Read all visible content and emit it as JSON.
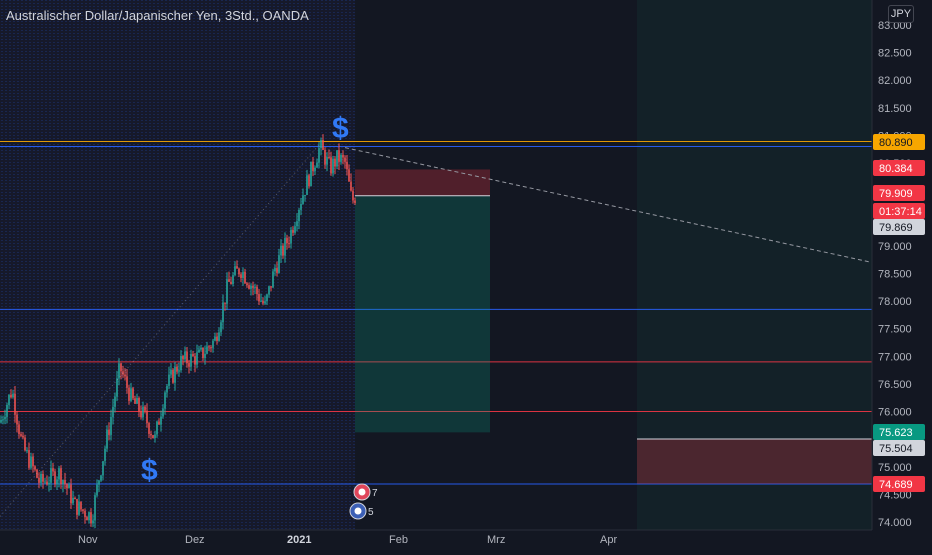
{
  "header": {
    "title": "Australischer Dollar/Japanischer Yen, 3Std., OANDA",
    "currency": "JPY"
  },
  "chart_data": {
    "type": "candlestick",
    "y_axis": {
      "ticks": [
        "74.000",
        "74.500",
        "75.000",
        "75.500",
        "76.000",
        "76.500",
        "77.000",
        "77.500",
        "78.000",
        "78.500",
        "79.000",
        "79.500",
        "80.000",
        "80.500",
        "81.000",
        "81.500",
        "82.000",
        "82.500",
        "83.000"
      ]
    },
    "x_axis": {
      "labels": [
        {
          "text": "Nov",
          "bold": false
        },
        {
          "text": "Dez",
          "bold": false
        },
        {
          "text": "2021",
          "bold": true
        },
        {
          "text": "Feb",
          "bold": false
        },
        {
          "text": "Mrz",
          "bold": false
        },
        {
          "text": "Apr",
          "bold": false
        }
      ]
    },
    "price_tags": [
      {
        "value": "80.890",
        "bg": "#f7a600",
        "fg": "#131722"
      },
      {
        "value": "80.384",
        "bg": "#f23645",
        "fg": "#ffffff"
      },
      {
        "value": "79.909",
        "bg": "#f23645",
        "fg": "#ffffff"
      },
      {
        "value": "01:37:14",
        "bg": "#f23645",
        "fg": "#ffffff"
      },
      {
        "value": "79.869",
        "bg": "#d1d4dc",
        "fg": "#131722"
      },
      {
        "value": "75.623",
        "bg": "#089981",
        "fg": "#ffffff"
      },
      {
        "value": "75.504",
        "bg": "#d1d4dc",
        "fg": "#131722"
      },
      {
        "value": "74.689",
        "bg": "#f23645",
        "fg": "#ffffff"
      }
    ],
    "horizontal_levels": [
      {
        "price": 80.89,
        "color": "#f7a600"
      },
      {
        "price": 80.8,
        "color": "#2962ff"
      },
      {
        "price": 77.85,
        "color": "#2962ff"
      },
      {
        "price": 76.9,
        "color": "#f23645"
      },
      {
        "price": 76.0,
        "color": "#f23645"
      },
      {
        "price": 74.689,
        "color": "#2962ff"
      }
    ],
    "position": {
      "entry": 79.909,
      "stop": 80.384,
      "target": 75.623
    },
    "range_box": {
      "top": 75.504,
      "bottom": 74.689
    },
    "markers": [
      {
        "symbol": "$",
        "kind": "high-marker"
      },
      {
        "symbol": "$",
        "kind": "low-marker"
      }
    ],
    "event_badges": [
      {
        "count": "7"
      },
      {
        "count": "5"
      }
    ],
    "colors": {
      "up": "#26a69a",
      "down": "#ef5350",
      "background": "#131722",
      "grid": "#1e222d"
    }
  }
}
